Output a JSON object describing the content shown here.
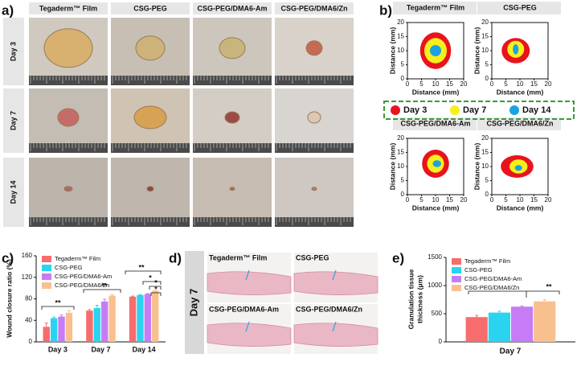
{
  "panel_labels": [
    "a)",
    "b)",
    "c)",
    "d)",
    "e)"
  ],
  "panel_a": {
    "columns": [
      "Tegaderm™ Film",
      "CSG-PEG",
      "CSG-PEG/DMA6-Am",
      "CSG-PEG/DMA6/Zn"
    ],
    "rows": [
      "Day 3",
      "Day 7",
      "Day 14"
    ]
  },
  "panel_b_legend": [
    {
      "name": "Day 3",
      "color": "#e8141c"
    },
    {
      "name": "Day 7",
      "color": "#f7ef1c"
    },
    {
      "name": "Day 14",
      "color": "#1aa3e0"
    }
  ],
  "panel_d": {
    "row": "Day 7",
    "titles": [
      "Tegaderm™ Film",
      "CSG-PEG",
      "CSG-PEG/DMA6-Am",
      "CSG-PEG/DMA6/Zn"
    ]
  },
  "chart_data": [
    {
      "type": "bar",
      "ylabel": "Wound closure ratio (%)",
      "categories": [
        "Day 3",
        "Day 7",
        "Day 14"
      ],
      "series": [
        {
          "name": "Tegaderm™ Film",
          "color": "#f76c6c",
          "values": [
            28,
            58,
            84
          ],
          "errors": [
            7,
            2,
            1
          ]
        },
        {
          "name": "CSG-PEG",
          "color": "#2ad4f0",
          "values": [
            44,
            63,
            87
          ],
          "errors": [
            2,
            5,
            1
          ]
        },
        {
          "name": "CSG-PEG/DMA6-Am",
          "color": "#c57cf5",
          "values": [
            47,
            75,
            89
          ],
          "errors": [
            3,
            4,
            1
          ]
        },
        {
          "name": "CSG-PEG/DMA6/Zn",
          "color": "#f9c08f",
          "values": [
            54,
            86,
            95
          ],
          "errors": [
            4,
            2,
            1
          ]
        }
      ],
      "ylim": [
        0,
        160
      ],
      "yticks": [
        0,
        40,
        80,
        120,
        160
      ],
      "annotations": [
        "**",
        "**",
        "**",
        "*",
        "*",
        "*"
      ]
    },
    {
      "type": "bar",
      "xlabel": "Day 7",
      "ylabel": [
        "Granulation tissue",
        "thickness (μm)"
      ],
      "categories": [
        null
      ],
      "series": [
        {
          "name": "Tegaderm™ Film",
          "color": "#f76c6c",
          "values": [
            440
          ],
          "errors": [
            30
          ]
        },
        {
          "name": "CSG-PEG",
          "color": "#2ad4f0",
          "values": [
            520
          ],
          "errors": [
            25
          ]
        },
        {
          "name": "CSG-PEG/DMA6-Am",
          "color": "#c57cf5",
          "values": [
            625
          ],
          "errors": [
            10
          ]
        },
        {
          "name": "CSG-PEG/DMA6/Zn",
          "color": "#f9c08f",
          "values": [
            720
          ],
          "errors": [
            30
          ]
        }
      ],
      "ylim": [
        0,
        1500
      ],
      "yticks": [
        0,
        500,
        1000,
        1500
      ],
      "annotations": [
        "**"
      ]
    },
    {
      "type": "map",
      "title": "Tegaderm™ Film",
      "xlabel": "Distance (mm)",
      "ylabel": "Distance (mm)",
      "xlim": [
        0,
        20
      ],
      "ylim": [
        0,
        20
      ],
      "xticks": [
        0,
        5,
        10,
        15,
        20
      ],
      "yticks": [
        0,
        5,
        10,
        15,
        20
      ]
    },
    {
      "type": "map",
      "title": "CSG-PEG",
      "xlabel": "Distance (mm)",
      "ylabel": "Distance (mm)",
      "xlim": [
        0,
        20
      ],
      "ylim": [
        0,
        20
      ],
      "xticks": [
        0,
        5,
        10,
        15,
        20
      ],
      "yticks": [
        0,
        5,
        10,
        15,
        20
      ]
    },
    {
      "type": "map",
      "title": "CSG-PEG/DMA6-Am",
      "xlabel": "Distance (mm)",
      "ylabel": "Distance (mm)",
      "xlim": [
        0,
        20
      ],
      "ylim": [
        0,
        20
      ],
      "xticks": [
        0,
        5,
        10,
        15,
        20
      ],
      "yticks": [
        0,
        5,
        10,
        15,
        20
      ]
    },
    {
      "type": "map",
      "title": "CSG-PEG/DMA6/Zn",
      "xlabel": "Distance (mm)",
      "ylabel": "Distance (mm)",
      "xlim": [
        0,
        20
      ],
      "ylim": [
        0,
        20
      ],
      "xticks": [
        0,
        5,
        10,
        15,
        20
      ],
      "yticks": [
        0,
        5,
        10,
        15,
        20
      ]
    }
  ]
}
